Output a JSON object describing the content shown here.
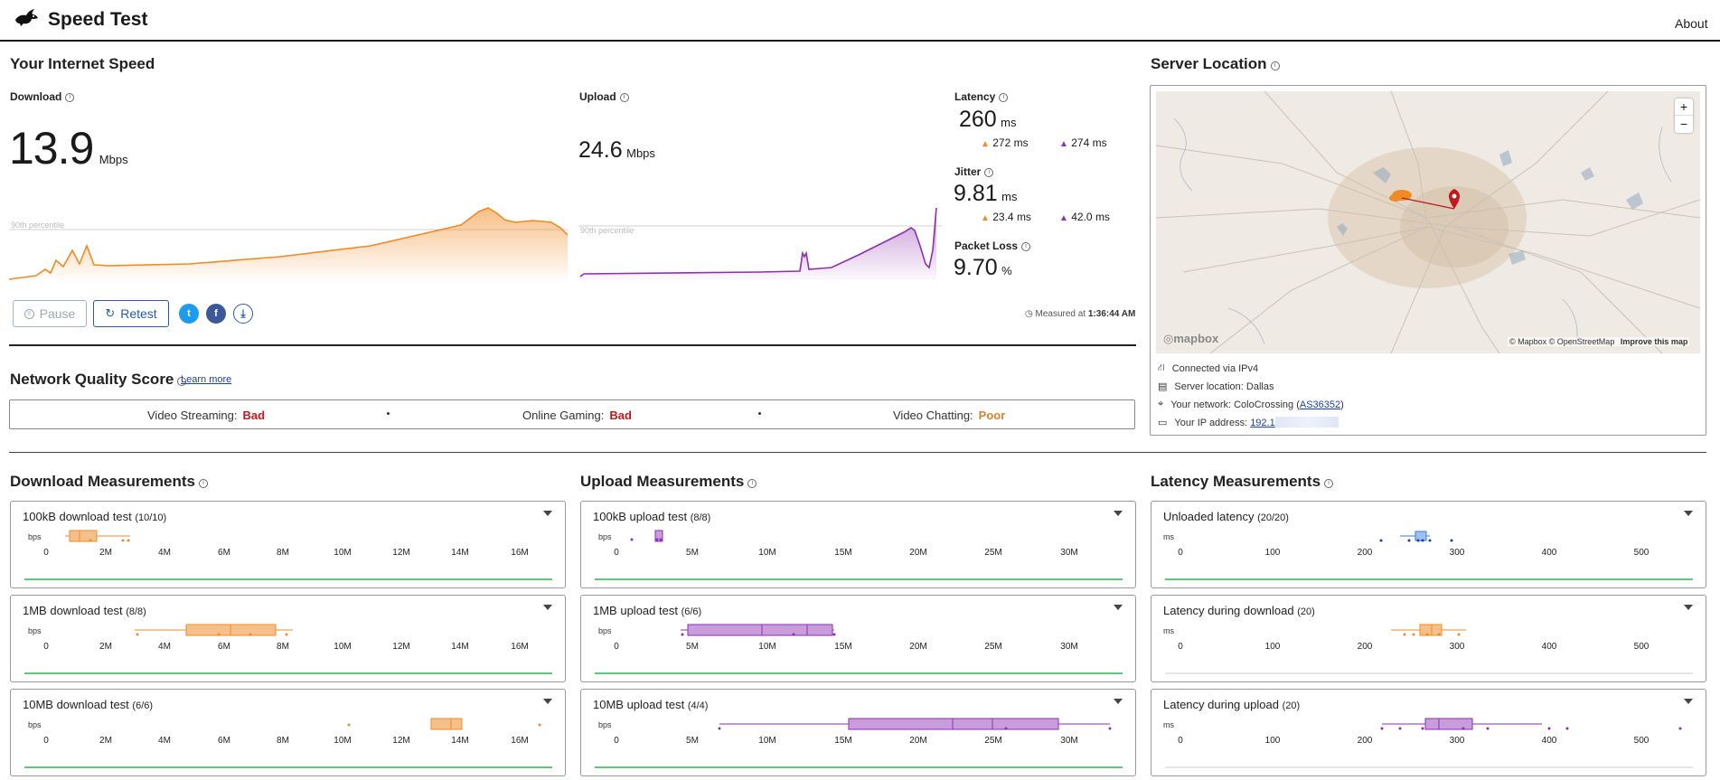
{
  "header": {
    "title": "Speed Test",
    "about": "About"
  },
  "speed": {
    "section_title": "Your Internet Speed",
    "download": {
      "label": "Download",
      "value": "13.9",
      "unit": "Mbps",
      "percentile": "90th percentile"
    },
    "upload": {
      "label": "Upload",
      "value": "24.6",
      "unit": "Mbps",
      "percentile": "90th percentile"
    },
    "latency": {
      "label": "Latency",
      "value": "260",
      "unit": "ms",
      "down": "272 ms",
      "up": "274 ms"
    },
    "jitter": {
      "label": "Jitter",
      "value": "9.81",
      "unit": "ms",
      "down": "23.4 ms",
      "up": "42.0 ms"
    },
    "packet_loss": {
      "label": "Packet Loss",
      "value": "9.70",
      "unit": "%"
    },
    "buttons": {
      "pause": "Pause",
      "retest": "Retest"
    },
    "measured_prefix": "Measured at",
    "measured_time": "1:36:44 AM"
  },
  "nqs": {
    "title": "Network Quality Score",
    "learn_more": "Learn more",
    "items": [
      {
        "label": "Video Streaming:",
        "value": "Bad",
        "color": "#c0181b"
      },
      {
        "label": "Online Gaming:",
        "value": "Bad",
        "color": "#c0181b"
      },
      {
        "label": "Video Chatting:",
        "value": "Poor",
        "color": "#d9822b"
      }
    ]
  },
  "server": {
    "title": "Server Location",
    "map_attribution": "© Mapbox © OpenStreetMap",
    "improve": "Improve this map",
    "mapbox": "mapbox",
    "zoom_in": "+",
    "zoom_out": "−",
    "info": [
      {
        "icon": "network-icon",
        "text": "Connected via IPv4"
      },
      {
        "icon": "server-icon",
        "text": "Server location: Dallas"
      },
      {
        "icon": "pin-icon",
        "text": "Your network: ColoCrossing (",
        "link": "AS36352",
        "after": ")"
      },
      {
        "icon": "ip-icon",
        "text": "Your IP address: ",
        "link": "192.1"
      }
    ]
  },
  "measurements": {
    "download_title": "Download Measurements",
    "upload_title": "Upload Measurements",
    "latency_title": "Latency Measurements",
    "download": [
      {
        "title": "100kB download test",
        "count": "(10/10)"
      },
      {
        "title": "1MB download test",
        "count": "(8/8)"
      },
      {
        "title": "10MB download test",
        "count": "(6/6)"
      }
    ],
    "upload": [
      {
        "title": "100kB upload test",
        "count": "(8/8)"
      },
      {
        "title": "1MB upload test",
        "count": "(6/6)"
      },
      {
        "title": "10MB upload test",
        "count": "(4/4)"
      }
    ],
    "latency": [
      {
        "title": "Unloaded latency",
        "count": "(20/20)"
      },
      {
        "title": "Latency during download",
        "count": "(20)"
      },
      {
        "title": "Latency during upload",
        "count": "(20)"
      }
    ],
    "bps_label": "bps",
    "ms_label": "ms",
    "download_ticks": [
      "0",
      "2M",
      "4M",
      "6M",
      "8M",
      "10M",
      "12M",
      "14M",
      "16M"
    ],
    "upload_ticks": [
      "0",
      "5M",
      "10M",
      "15M",
      "20M",
      "25M",
      "30M"
    ],
    "latency_ticks": [
      "0",
      "100",
      "200",
      "300",
      "400",
      "500"
    ]
  },
  "colors": {
    "download": "#f08a24",
    "upload": "#8e2fb0",
    "latency": "#3a7bd5",
    "good": "#2fb350",
    "bad": "#c0181b",
    "poor": "#d9822b"
  }
}
